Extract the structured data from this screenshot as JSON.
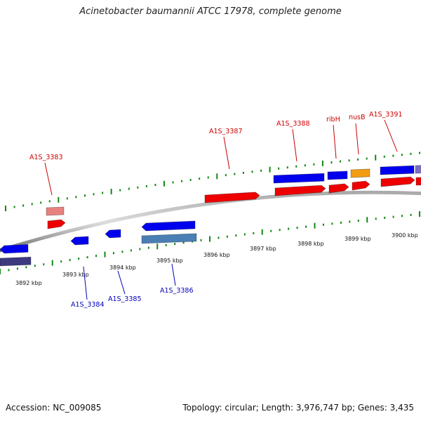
{
  "title": "Acinetobacter baumannii ATCC 17978, complete genome",
  "footer": {
    "accession": "Accession: NC_009085",
    "summary": "Topology: circular; Length: 3,976,747 bp; Genes: 3,435"
  },
  "colors": {
    "forward_cds": "#0000ee",
    "reverse_cds": "#ee0000",
    "label_top": "#cc0000",
    "label_bottom": "#0000bb",
    "tick": "#118811",
    "backbone": "#888888",
    "orange_feature": "#f39c12",
    "steelblue_feature": "#4a7fb5",
    "navy_feature": "#3d3a80",
    "pink_feature": "#e88080",
    "violet_feature": "#7a6fc2"
  },
  "scale_labels": [
    {
      "kbp": 3892,
      "text": "3892 kbp"
    },
    {
      "kbp": 3893,
      "text": "3893 kbp"
    },
    {
      "kbp": 3894,
      "text": "3894 kbp"
    },
    {
      "kbp": 3895,
      "text": "3895 kbp"
    },
    {
      "kbp": 3896,
      "text": "3896 kbp"
    },
    {
      "kbp": 3897,
      "text": "3897 kbp"
    },
    {
      "kbp": 3898,
      "text": "3898 kbp"
    },
    {
      "kbp": 3899,
      "text": "3899 kbp"
    },
    {
      "kbp": 3900,
      "text": "3900 kbp"
    }
  ],
  "gene_labels": [
    {
      "id": "A1S_3383",
      "text": "A1S_3383",
      "side": "top"
    },
    {
      "id": "A1S_3384",
      "text": "A1S_3384",
      "side": "bottom"
    },
    {
      "id": "A1S_3385",
      "text": "A1S_3385",
      "side": "bottom"
    },
    {
      "id": "A1S_3386",
      "text": "A1S_3386",
      "side": "bottom"
    },
    {
      "id": "A1S_3387",
      "text": "A1S_3387",
      "side": "top"
    },
    {
      "id": "A1S_3388",
      "text": "A1S_3388",
      "side": "top"
    },
    {
      "id": "ribH",
      "text": "ribH",
      "side": "top"
    },
    {
      "id": "nusB",
      "text": "nusB",
      "side": "top"
    },
    {
      "id": "A1S_3391",
      "text": "A1S_3391",
      "side": "top"
    }
  ]
}
